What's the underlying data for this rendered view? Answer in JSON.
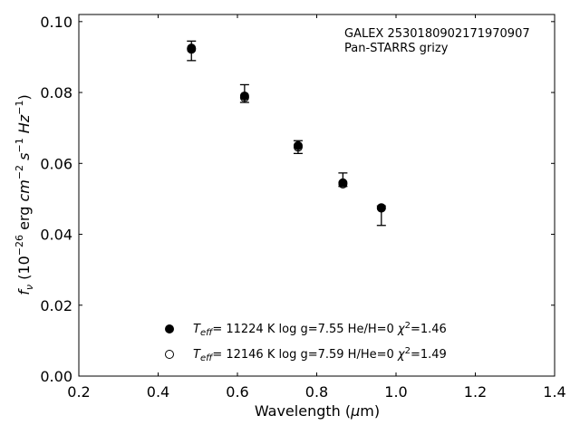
{
  "chart_data": {
    "type": "scatter",
    "xlabel": "Wavelength (μm)",
    "ylabel": "f_ν (10^-26 erg cm^-2 s^-1 Hz^-1)",
    "xlim": [
      0.2,
      1.4
    ],
    "ylim": [
      0.0,
      0.102
    ],
    "xticks": [
      "0.2",
      "0.4",
      "0.6",
      "0.8",
      "1.0",
      "1.2",
      "1.4"
    ],
    "yticks": [
      "0.00",
      "0.02",
      "0.04",
      "0.06",
      "0.08",
      "0.10"
    ],
    "annotation": [
      "GALEX 2530180902171970907",
      "Pan-STARRS grizy"
    ],
    "grid": false,
    "series": [
      {
        "marker": "filled-circle",
        "x": [
          0.484,
          0.618,
          0.753,
          0.866,
          0.963
        ],
        "y": [
          0.0925,
          0.079,
          0.065,
          0.0545,
          0.0475
        ],
        "err_low": [
          0.0035,
          0.0018,
          0.0022,
          0.001,
          0.005
        ],
        "err_high": [
          0.002,
          0.0032,
          0.0014,
          0.0028,
          0.0005
        ]
      },
      {
        "marker": "open-circle",
        "x": [
          0.484,
          0.618,
          0.753,
          0.866,
          0.963
        ],
        "y": [
          0.0922,
          0.0786,
          0.0646,
          0.0542,
          0.0474
        ]
      }
    ],
    "legend": {
      "placement": "lower-center",
      "entries": [
        {
          "marker": "filled-circle",
          "text": "T_eff= 11224 K  log g=7.55  He/H=0  χ²=1.46"
        },
        {
          "marker": "open-circle",
          "text": "T_eff= 12146 K  log g=7.59  H/He=0  χ²=1.49"
        }
      ]
    }
  }
}
